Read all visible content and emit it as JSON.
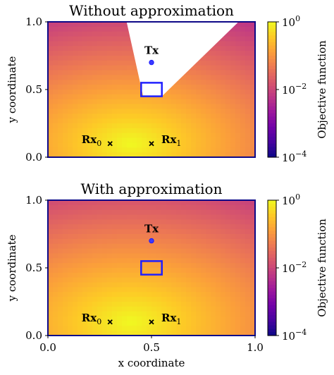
{
  "figure": {
    "colors": {
      "colormap": [
        "#0d0887",
        "#46039f",
        "#7201a8",
        "#9c179e",
        "#bd3786",
        "#d8576b",
        "#ed7953",
        "#fb9f3a",
        "#fdca26",
        "#f0f921"
      ],
      "frame": "#0d0887",
      "box": "#1f1fff",
      "tx_marker": "#3b3bff",
      "rx_marker": "#000000"
    }
  },
  "chart_data": [
    {
      "type": "heatmap",
      "title": "Without approximation",
      "xlabel": "",
      "ylabel": "y coordinate",
      "xlim": [
        0.0,
        1.0
      ],
      "ylim": [
        0.0,
        1.0
      ],
      "yticks": [
        "0.0",
        "0.5",
        "1.0"
      ],
      "xticks": [],
      "masked_region": [
        [
          0.38,
          1.0
        ],
        [
          0.92,
          1.0
        ],
        [
          0.55,
          0.45
        ],
        [
          0.46,
          0.45
        ]
      ],
      "field": {
        "peak": [
          0.4,
          0.1
        ],
        "scale": 0.55,
        "min_value": 0.003,
        "max_value": 1.0
      },
      "markers": [
        {
          "label": "Tx",
          "x": 0.5,
          "y": 0.7,
          "shape": "circle"
        },
        {
          "label": "Rx",
          "sub": "0",
          "x": 0.3,
          "y": 0.1,
          "shape": "x"
        },
        {
          "label": "Rx",
          "sub": "1",
          "x": 0.5,
          "y": 0.1,
          "shape": "x"
        }
      ],
      "rectangle": {
        "x0": 0.45,
        "x1": 0.55,
        "y0": 0.45,
        "y1": 0.55
      },
      "colorbar": {
        "label": "Objective function",
        "range": [
          0.0001,
          1.0
        ],
        "scale": "log",
        "ticks": [
          {
            "base": "10",
            "exp": "0"
          },
          {
            "base": "10",
            "exp": "−2"
          },
          {
            "base": "10",
            "exp": "−4"
          }
        ]
      }
    },
    {
      "type": "heatmap",
      "title": "With approximation",
      "xlabel": "x coordinate",
      "ylabel": "y coordinate",
      "xlim": [
        0.0,
        1.0
      ],
      "ylim": [
        0.0,
        1.0
      ],
      "yticks": [
        "0.0",
        "0.5",
        "1.0"
      ],
      "xticks": [
        "0.0",
        "0.5",
        "1.0"
      ],
      "masked_region": [],
      "field": {
        "peak": [
          0.4,
          0.1
        ],
        "scale": 0.6,
        "min_value": 0.004,
        "max_value": 1.0
      },
      "markers": [
        {
          "label": "Tx",
          "x": 0.5,
          "y": 0.7,
          "shape": "circle"
        },
        {
          "label": "Rx",
          "sub": "0",
          "x": 0.3,
          "y": 0.1,
          "shape": "x"
        },
        {
          "label": "Rx",
          "sub": "1",
          "x": 0.5,
          "y": 0.1,
          "shape": "x"
        }
      ],
      "rectangle": {
        "x0": 0.45,
        "x1": 0.55,
        "y0": 0.45,
        "y1": 0.55
      },
      "colorbar": {
        "label": "Objective function",
        "range": [
          0.0001,
          1.0
        ],
        "scale": "log",
        "ticks": [
          {
            "base": "10",
            "exp": "0"
          },
          {
            "base": "10",
            "exp": "−2"
          },
          {
            "base": "10",
            "exp": "−4"
          }
        ]
      }
    }
  ]
}
